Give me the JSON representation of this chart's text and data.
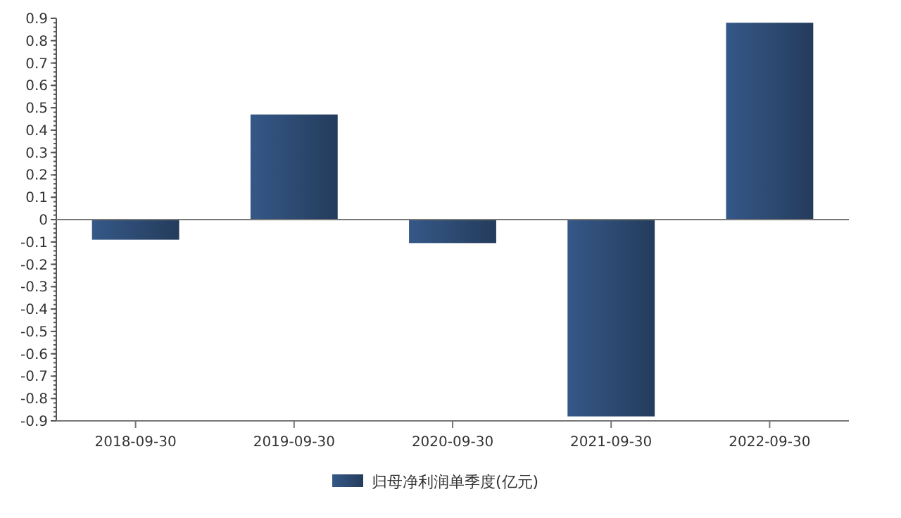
{
  "chart_data": {
    "type": "bar",
    "categories": [
      "2018-09-30",
      "2019-09-30",
      "2020-09-30",
      "2021-09-30",
      "2022-09-30"
    ],
    "series": [
      {
        "name": "归母净利润单季度(亿元)",
        "color": "#2c4a72",
        "values": [
          -0.09,
          0.47,
          -0.105,
          -0.88,
          0.88
        ]
      }
    ],
    "ylim": [
      -0.9,
      0.9
    ],
    "yticks": [
      -0.9,
      -0.8,
      -0.7,
      -0.6,
      -0.5,
      -0.4,
      -0.3,
      -0.2,
      -0.1,
      0,
      0.1,
      0.2,
      0.3,
      0.4,
      0.5,
      0.6,
      0.7,
      0.8,
      0.9
    ],
    "legend": "bottom"
  }
}
